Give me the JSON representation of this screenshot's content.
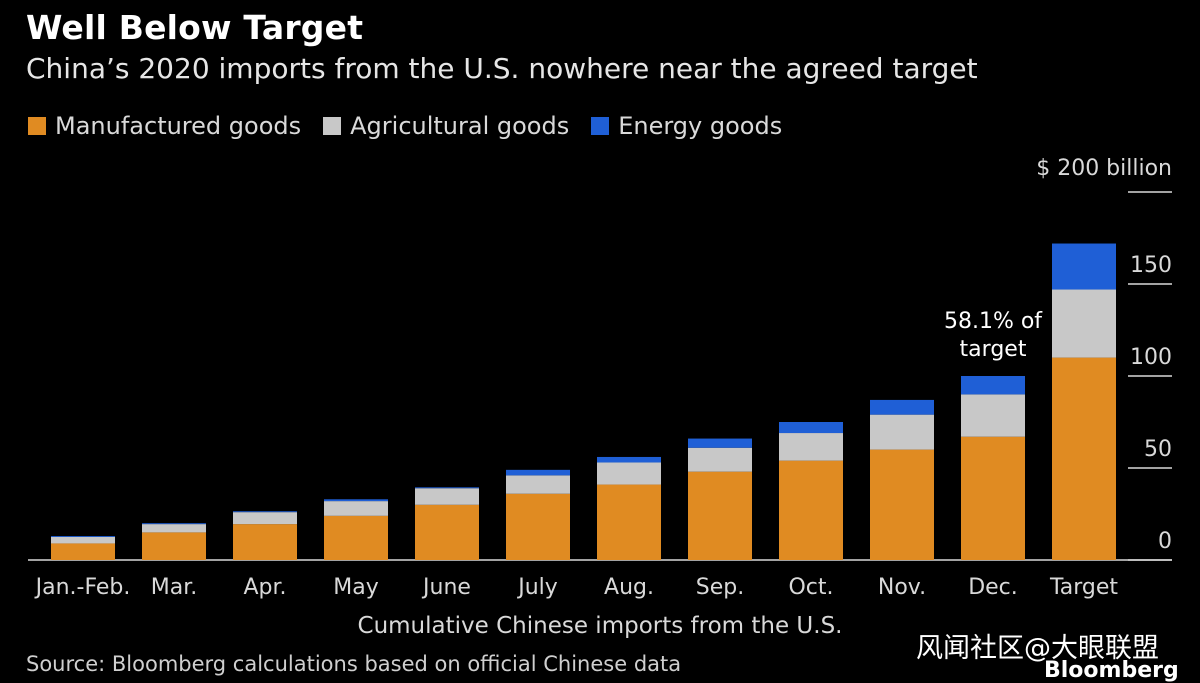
{
  "header": {
    "title": "Well Below Target",
    "subtitle": "China’s 2020 imports from the U.S. nowhere near the agreed target"
  },
  "legend": [
    {
      "label": "Manufactured goods",
      "color": "#e08b22"
    },
    {
      "label": "Agricultural goods",
      "color": "#c8c8c8"
    },
    {
      "label": "Energy goods",
      "color": "#1f5fd6"
    }
  ],
  "chart_data": {
    "type": "bar",
    "stacked": true,
    "title": "Well Below Target",
    "subtitle": "China’s 2020 imports from the U.S. nowhere near the agreed target",
    "xlabel": "Cumulative Chinese imports from the U.S.",
    "ylabel": "",
    "y_unit_label": "$ 200 billion",
    "ylim": [
      0,
      200
    ],
    "yticks": [
      0,
      50,
      100,
      150,
      200
    ],
    "ytick_labels": [
      "0",
      "50",
      "100",
      "150",
      ""
    ],
    "axis_side": "right",
    "categories": [
      "Jan.-Feb.",
      "Mar.",
      "Apr.",
      "May",
      "June",
      "July",
      "Aug.",
      "Sep.",
      "Oct.",
      "Nov.",
      "Dec.",
      "Target"
    ],
    "series": [
      {
        "name": "Manufactured goods",
        "color": "#e08b22",
        "values": [
          9,
          15,
          19.5,
          24,
          30,
          36,
          41,
          48,
          54,
          60,
          67,
          110
        ]
      },
      {
        "name": "Agricultural goods",
        "color": "#c8c8c8",
        "values": [
          3.5,
          4.5,
          6.5,
          8,
          9,
          10,
          12,
          13,
          15,
          19,
          23,
          37
        ]
      },
      {
        "name": "Energy goods",
        "color": "#1f5fd6",
        "values": [
          0.5,
          0.5,
          0.5,
          1,
          0.5,
          3,
          3,
          5,
          6,
          8,
          10,
          25
        ]
      }
    ],
    "annotations": [
      {
        "category": "Dec.",
        "text_lines": [
          "58.1% of",
          "target"
        ]
      }
    ]
  },
  "footer": {
    "source": "Source: Bloomberg calculations based on official Chinese data",
    "watermark": "风闻社区@大眼联盟",
    "logo": "Bloomberg"
  }
}
